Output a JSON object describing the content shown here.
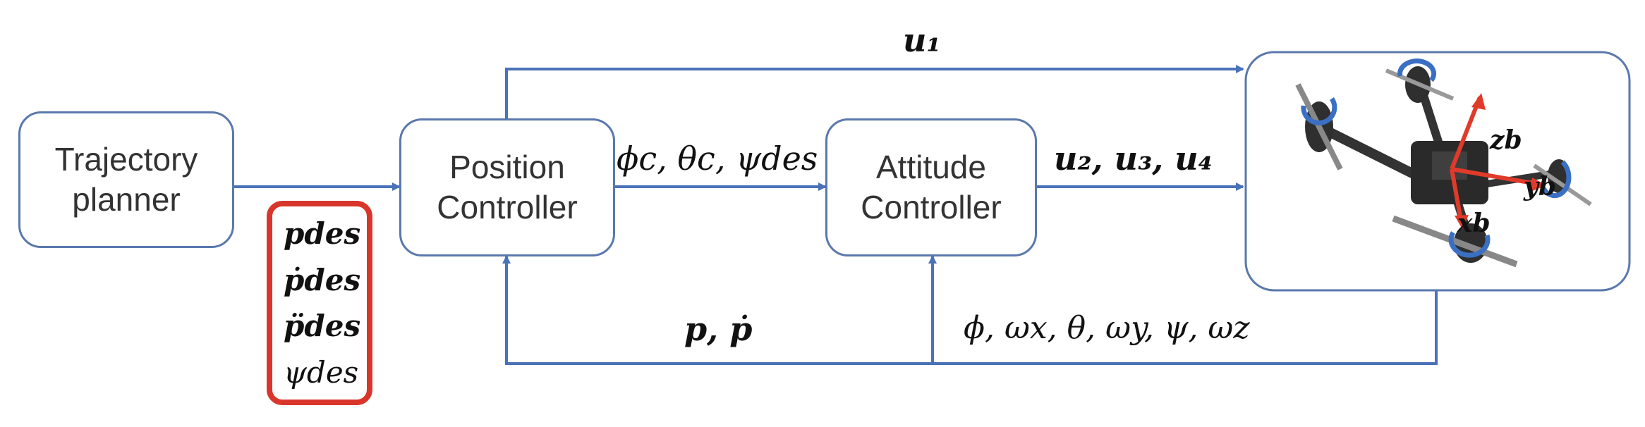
{
  "nodes": {
    "trajectory_planner": "Trajectory\nplanner",
    "position_controller": "Position\nController",
    "attitude_controller": "Attitude\nController"
  },
  "signals": {
    "u1": "u₁",
    "angles_cmd": "ϕc, θc, ψdes",
    "u234": "u₂, u₃, u₄",
    "pos_feedback": "p, ṗ",
    "att_feedback": "ϕ, ωx, θ, ωy, ψ, ωz"
  },
  "desired_inputs": [
    "pdes",
    "ṗdes",
    "p̈des",
    "ψdes"
  ],
  "drone_axes": [
    "zb",
    "yb",
    "xb"
  ],
  "colors": {
    "line": "#4a72b8",
    "box_border": "#5a78ad",
    "highlight": "#d9362b",
    "axis": "#e03a2a",
    "prop": "#3a6fc4"
  }
}
